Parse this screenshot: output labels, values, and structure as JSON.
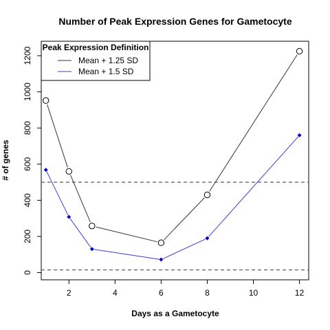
{
  "chart_data": {
    "type": "line",
    "title": "Number of Peak Expression Genes for Gametocyte",
    "xlabel": "Days as a Gametocyte",
    "ylabel": "# of genes",
    "xlim": [
      0.8,
      12.4
    ],
    "ylim": [
      -40,
      1280
    ],
    "x_ticks": [
      2,
      4,
      6,
      8,
      10,
      12
    ],
    "y_ticks": [
      0,
      200,
      400,
      600,
      800,
      1000,
      1200
    ],
    "grid": false,
    "legend": {
      "title": "Peak Expression Definition",
      "placement": "top-left"
    },
    "reference_lines": [
      {
        "y": 500,
        "style": "dashed",
        "color": "#666666"
      },
      {
        "y": 15,
        "style": "dashed",
        "color": "#666666"
      }
    ],
    "x": [
      1,
      2,
      3,
      6,
      8,
      12
    ],
    "series": [
      {
        "name": "Mean + 1.25 SD",
        "values": [
          952,
          560,
          258,
          165,
          430,
          1225
        ],
        "color": "#333333",
        "marker": "open-circle"
      },
      {
        "name": "Mean + 1.5 SD",
        "values": [
          568,
          308,
          130,
          72,
          190,
          760
        ],
        "color": "#3b3bdc",
        "point_color": "#0000cd",
        "marker": "filled-diamond"
      }
    ]
  }
}
